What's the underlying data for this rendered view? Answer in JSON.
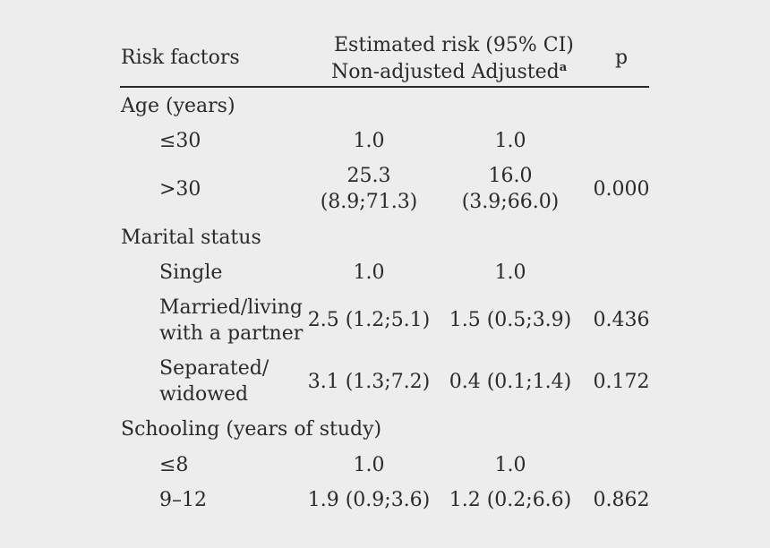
{
  "header": {
    "risk_factors": "Risk factors",
    "estimated_risk": "Estimated risk (95% CI)",
    "non_adjusted": "Non-adjusted",
    "adjusted": "Adjusted",
    "adjusted_sup": "a",
    "p": "p"
  },
  "groups": [
    {
      "label": "Age (years)",
      "rows": [
        {
          "label": [
            "≤30"
          ],
          "non_adjusted": [
            "1.0"
          ],
          "adjusted": [
            "1.0"
          ],
          "p": ""
        },
        {
          "label": [
            ">30"
          ],
          "non_adjusted": [
            "25.3",
            "(8.9;71.3)"
          ],
          "adjusted": [
            "16.0",
            "(3.9;66.0)"
          ],
          "p": "0.000"
        }
      ]
    },
    {
      "label": "Marital status",
      "rows": [
        {
          "label": [
            "Single"
          ],
          "non_adjusted": [
            "1.0"
          ],
          "adjusted": [
            "1.0"
          ],
          "p": ""
        },
        {
          "label": [
            "Married/living",
            "with a partner"
          ],
          "non_adjusted": [
            "2.5 (1.2;5.1)"
          ],
          "adjusted": [
            "1.5 (0.5;3.9)"
          ],
          "p": "0.436"
        },
        {
          "label": [
            "Separated/",
            "widowed"
          ],
          "non_adjusted": [
            "3.1 (1.3;7.2)"
          ],
          "adjusted": [
            "0.4 (0.1;1.4)"
          ],
          "p": "0.172"
        }
      ]
    },
    {
      "label": "Schooling (years of study)",
      "rows": [
        {
          "label": [
            "≤8"
          ],
          "non_adjusted": [
            "1.0"
          ],
          "adjusted": [
            "1.0"
          ],
          "p": ""
        },
        {
          "label": [
            "9–12"
          ],
          "non_adjusted": [
            "1.9 (0.9;3.6)"
          ],
          "adjusted": [
            "1.2 (0.2;6.6)"
          ],
          "p": "0.862"
        }
      ]
    }
  ]
}
